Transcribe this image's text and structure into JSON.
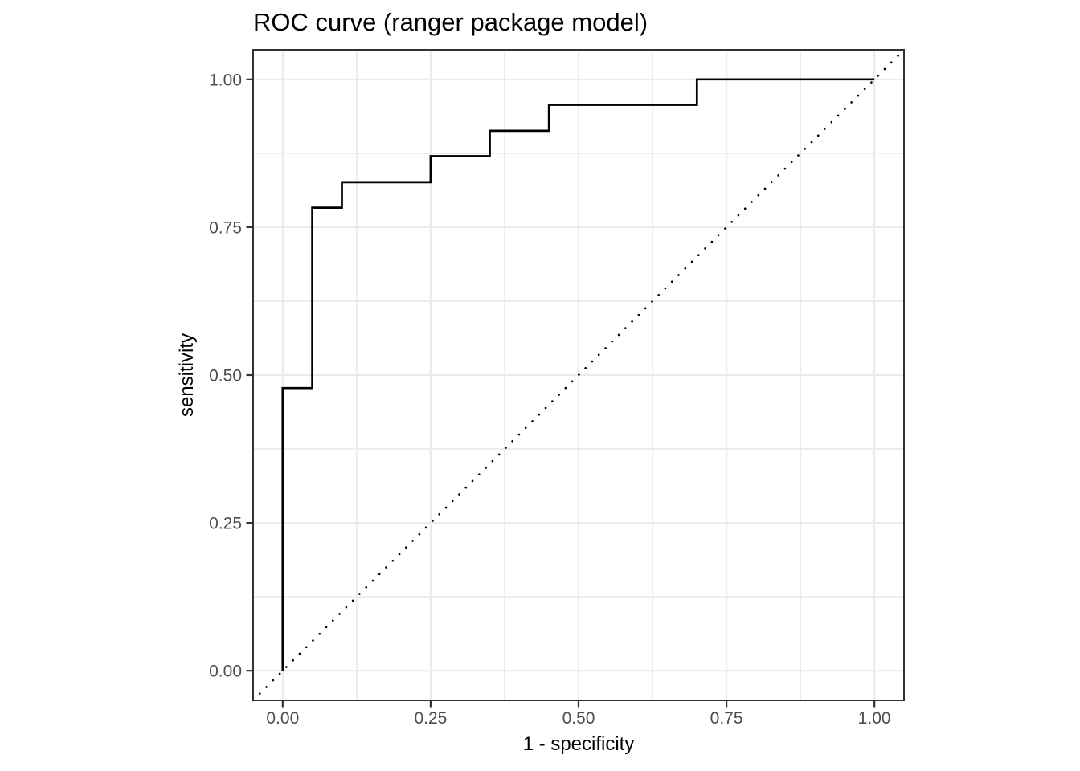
{
  "title": "ROC curve (ranger package model)",
  "chart_data": {
    "type": "line",
    "subtype": "roc-step-curve",
    "title": "ROC curve (ranger package model)",
    "xlabel": "1 - specificity",
    "ylabel": "sensitivity",
    "xlim": [
      -0.05,
      1.05
    ],
    "ylim": [
      -0.05,
      1.05
    ],
    "x_ticks": {
      "values": [
        0,
        0.25,
        0.5,
        0.75,
        1
      ],
      "labels": [
        "0.00",
        "0.25",
        "0.50",
        "0.75",
        "1.00"
      ]
    },
    "y_ticks": {
      "values": [
        0,
        0.25,
        0.5,
        0.75,
        1
      ],
      "labels": [
        "0.00",
        "0.25",
        "0.50",
        "0.75",
        "1.00"
      ]
    },
    "minor_ticks": [
      0.125,
      0.375,
      0.625,
      0.875
    ],
    "grid": "major and minor on, white panel",
    "legend": "none",
    "series": [
      {
        "name": "roc-curve",
        "linestyle": "solid",
        "color": "#000000",
        "points": [
          [
            0.0,
            0.0
          ],
          [
            0.0,
            0.478
          ],
          [
            0.05,
            0.478
          ],
          [
            0.05,
            0.783
          ],
          [
            0.1,
            0.783
          ],
          [
            0.1,
            0.826
          ],
          [
            0.25,
            0.826
          ],
          [
            0.25,
            0.87
          ],
          [
            0.35,
            0.87
          ],
          [
            0.35,
            0.913
          ],
          [
            0.45,
            0.913
          ],
          [
            0.45,
            0.957
          ],
          [
            0.7,
            0.957
          ],
          [
            0.7,
            1.0
          ],
          [
            1.0,
            1.0
          ]
        ]
      },
      {
        "name": "chance-diagonal",
        "linestyle": "dotted",
        "color": "#000000",
        "points": [
          [
            -0.05,
            -0.05
          ],
          [
            1.05,
            1.05
          ]
        ]
      }
    ],
    "colors": {
      "background": "#FFFFFF",
      "panel_background": "#FFFFFF",
      "gridline": "#EBEBEB",
      "panel_border": "#333333",
      "tick_mark": "#333333",
      "tick_label": "#4D4D4D",
      "text": "#000000"
    }
  }
}
